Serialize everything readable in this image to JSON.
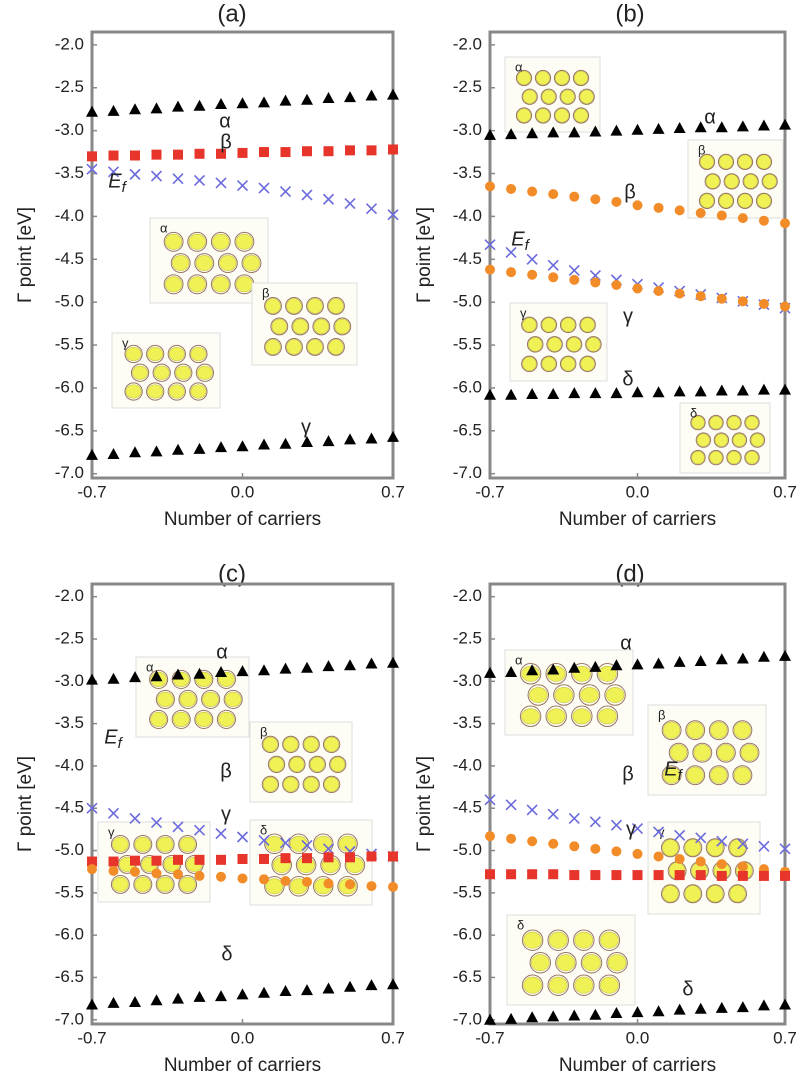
{
  "chart_data": [
    {
      "type": "scatter",
      "title": "(a)",
      "xlabel": "Number of carriers",
      "ylabel": "Γ point [eV]",
      "x": [
        -0.7,
        -0.6,
        -0.5,
        -0.4,
        -0.3,
        -0.2,
        -0.1,
        0,
        0.1,
        0.2,
        0.3,
        0.4,
        0.5,
        0.6,
        0.7
      ],
      "xlim": [
        -0.7,
        0.7
      ],
      "ylim": [
        -7.05,
        -1.85
      ],
      "xticks": [
        -0.7,
        {
          "value": 0,
          "label": "0.0"
        },
        0.7
      ],
      "yticks": [
        {
          "value": -2,
          "label": "-2.0"
        },
        -2.5,
        {
          "value": -3,
          "label": "-3.0"
        },
        -3.5,
        {
          "value": -4,
          "label": "-4.0"
        },
        -4.5,
        {
          "value": -5,
          "label": "-5.0"
        },
        -5.5,
        {
          "value": -6,
          "label": "-6.0"
        },
        -6.5,
        {
          "value": -7,
          "label": "-7.0"
        }
      ],
      "series": [
        {
          "name": "α",
          "color": "#000000",
          "marker": "triangle",
          "values": [
            -2.78,
            -2.77,
            -2.75,
            -2.74,
            -2.72,
            -2.71,
            -2.69,
            -2.68,
            -2.67,
            -2.65,
            -2.64,
            -2.62,
            -2.61,
            -2.59,
            -2.58
          ]
        },
        {
          "name": "β",
          "color": "#e8352b",
          "marker": "square",
          "values": [
            -3.3,
            -3.29,
            -3.29,
            -3.28,
            -3.28,
            -3.27,
            -3.27,
            -3.26,
            -3.25,
            -3.25,
            -3.24,
            -3.24,
            -3.23,
            -3.23,
            -3.22
          ]
        },
        {
          "name": "Ef",
          "color": "#6b6bdc",
          "marker": "cross",
          "values": [
            -3.45,
            -3.48,
            -3.51,
            -3.53,
            -3.56,
            -3.58,
            -3.61,
            -3.64,
            -3.67,
            -3.71,
            -3.75,
            -3.8,
            -3.85,
            -3.91,
            -3.98
          ]
        },
        {
          "name": "γ",
          "color": "#000000",
          "marker": "triangle",
          "values": [
            -6.78,
            -6.77,
            -6.75,
            -6.74,
            -6.72,
            -6.71,
            -6.69,
            -6.68,
            -6.66,
            -6.65,
            -6.63,
            -6.62,
            -6.6,
            -6.59,
            -6.57
          ]
        }
      ],
      "insets": [
        "α",
        "β",
        "γ"
      ]
    },
    {
      "type": "scatter",
      "title": "(b)",
      "xlabel": "Number of carriers",
      "ylabel": "Γ point [eV]",
      "x": [
        -0.7,
        -0.6,
        -0.5,
        -0.4,
        -0.3,
        -0.2,
        -0.1,
        0,
        0.1,
        0.2,
        0.3,
        0.4,
        0.5,
        0.6,
        0.7
      ],
      "xlim": [
        -0.7,
        0.7
      ],
      "ylim": [
        -7.05,
        -1.85
      ],
      "xticks": [
        -0.7,
        {
          "value": 0,
          "label": "0.0"
        },
        0.7
      ],
      "yticks": [
        {
          "value": -2,
          "label": "-2.0"
        },
        -2.5,
        {
          "value": -3,
          "label": "-3.0"
        },
        -3.5,
        {
          "value": -4,
          "label": "-4.0"
        },
        -4.5,
        {
          "value": -5,
          "label": "-5.0"
        },
        -5.5,
        {
          "value": -6,
          "label": "-6.0"
        },
        -6.5,
        {
          "value": -7,
          "label": "-7.0"
        }
      ],
      "series": [
        {
          "name": "α",
          "color": "#000000",
          "marker": "triangle",
          "values": [
            -3.05,
            -3.04,
            -3.03,
            -3.02,
            -3.02,
            -3.01,
            -3.0,
            -2.99,
            -2.98,
            -2.97,
            -2.96,
            -2.96,
            -2.95,
            -2.94,
            -2.93
          ]
        },
        {
          "name": "β",
          "color": "#f28c28",
          "marker": "circle",
          "values": [
            -3.65,
            -3.68,
            -3.71,
            -3.74,
            -3.77,
            -3.8,
            -3.83,
            -3.87,
            -3.9,
            -3.93,
            -3.96,
            -3.99,
            -4.02,
            -4.05,
            -4.08
          ]
        },
        {
          "name": "Ef",
          "color": "#6b6bdc",
          "marker": "cross",
          "values": [
            -4.33,
            -4.42,
            -4.5,
            -4.57,
            -4.63,
            -4.69,
            -4.74,
            -4.79,
            -4.83,
            -4.87,
            -4.91,
            -4.95,
            -4.99,
            -5.03,
            -5.07
          ]
        },
        {
          "name": "γ",
          "color": "#f28c28",
          "marker": "circle",
          "values": [
            -4.62,
            -4.65,
            -4.68,
            -4.71,
            -4.74,
            -4.77,
            -4.8,
            -4.84,
            -4.87,
            -4.9,
            -4.93,
            -4.96,
            -4.99,
            -5.02,
            -5.05
          ]
        },
        {
          "name": "δ",
          "color": "#000000",
          "marker": "triangle",
          "values": [
            -6.08,
            -6.08,
            -6.07,
            -6.07,
            -6.06,
            -6.06,
            -6.06,
            -6.05,
            -6.05,
            -6.04,
            -6.04,
            -6.03,
            -6.03,
            -6.02,
            -6.02
          ]
        }
      ],
      "insets": [
        "α",
        "β",
        "γ",
        "δ"
      ]
    },
    {
      "type": "scatter",
      "title": "(c)",
      "xlabel": "Number of carriers",
      "ylabel": "Γ point [eV]",
      "x": [
        -0.7,
        -0.6,
        -0.5,
        -0.4,
        -0.3,
        -0.2,
        -0.1,
        0,
        0.1,
        0.2,
        0.3,
        0.4,
        0.5,
        0.6,
        0.7
      ],
      "xlim": [
        -0.7,
        0.7
      ],
      "ylim": [
        -7.05,
        -1.85
      ],
      "xticks": [
        -0.7,
        {
          "value": 0,
          "label": "0.0"
        },
        0.7
      ],
      "yticks": [
        {
          "value": -2,
          "label": "-2.0"
        },
        -2.5,
        {
          "value": -3,
          "label": "-3.0"
        },
        -3.5,
        {
          "value": -4,
          "label": "-4.0"
        },
        -4.5,
        {
          "value": -5,
          "label": "-5.0"
        },
        -5.5,
        {
          "value": -6,
          "label": "-6.0"
        },
        -6.5,
        {
          "value": -7,
          "label": "-7.0"
        }
      ],
      "series": [
        {
          "name": "α",
          "color": "#000000",
          "marker": "triangle",
          "values": [
            -2.98,
            -2.97,
            -2.95,
            -2.94,
            -2.92,
            -2.91,
            -2.89,
            -2.88,
            -2.87,
            -2.85,
            -2.84,
            -2.82,
            -2.81,
            -2.79,
            -2.78
          ]
        },
        {
          "name": "Ef",
          "color": "#6b6bdc",
          "marker": "cross",
          "values": [
            -4.5,
            -4.56,
            -4.62,
            -4.67,
            -4.72,
            -4.76,
            -4.8,
            -4.84,
            -4.88,
            -4.91,
            -4.94,
            -4.98,
            -5.01,
            -5.04,
            -5.07
          ]
        },
        {
          "name": "β",
          "color": "#e8352b",
          "marker": "square",
          "values": [
            -5.13,
            -5.13,
            -5.12,
            -5.12,
            -5.11,
            -5.11,
            -5.11,
            -5.1,
            -5.1,
            -5.09,
            -5.09,
            -5.08,
            -5.08,
            -5.07,
            -5.07
          ]
        },
        {
          "name": "γ",
          "color": "#f28c28",
          "marker": "circle",
          "values": [
            -5.22,
            -5.24,
            -5.25,
            -5.27,
            -5.28,
            -5.3,
            -5.31,
            -5.33,
            -5.34,
            -5.36,
            -5.37,
            -5.39,
            -5.4,
            -5.42,
            -5.43
          ]
        },
        {
          "name": "δ",
          "color": "#000000",
          "marker": "triangle",
          "values": [
            -6.82,
            -6.8,
            -6.79,
            -6.77,
            -6.75,
            -6.73,
            -6.72,
            -6.7,
            -6.68,
            -6.66,
            -6.65,
            -6.63,
            -6.61,
            -6.59,
            -6.58
          ]
        }
      ],
      "insets": [
        "α",
        "β",
        "γ",
        "δ"
      ]
    },
    {
      "type": "scatter",
      "title": "(d)",
      "xlabel": "Number of carriers",
      "ylabel": "Γ point [eV]",
      "x": [
        -0.7,
        -0.6,
        -0.5,
        -0.4,
        -0.3,
        -0.2,
        -0.1,
        0,
        0.1,
        0.2,
        0.3,
        0.4,
        0.5,
        0.6,
        0.7
      ],
      "xlim": [
        -0.7,
        0.7
      ],
      "ylim": [
        -7.05,
        -1.85
      ],
      "xticks": [
        -0.7,
        {
          "value": 0,
          "label": "0.0"
        },
        0.7
      ],
      "yticks": [
        {
          "value": -2,
          "label": "-2.0"
        },
        -2.5,
        {
          "value": -3,
          "label": "-3.0"
        },
        -3.5,
        {
          "value": -4,
          "label": "-4.0"
        },
        -4.5,
        {
          "value": -5,
          "label": "-5.0"
        },
        -5.5,
        {
          "value": -6,
          "label": "-6.0"
        },
        -6.5,
        {
          "value": -7,
          "label": "-7.0"
        }
      ],
      "series": [
        {
          "name": "α",
          "color": "#000000",
          "marker": "triangle",
          "values": [
            -2.9,
            -2.89,
            -2.87,
            -2.86,
            -2.84,
            -2.83,
            -2.81,
            -2.8,
            -2.79,
            -2.77,
            -2.76,
            -2.74,
            -2.73,
            -2.71,
            -2.7
          ]
        },
        {
          "name": "Ef",
          "color": "#6b6bdc",
          "marker": "cross",
          "values": [
            -4.4,
            -4.46,
            -4.52,
            -4.57,
            -4.62,
            -4.66,
            -4.7,
            -4.74,
            -4.78,
            -4.82,
            -4.85,
            -4.89,
            -4.92,
            -4.95,
            -4.98
          ]
        },
        {
          "name": "β",
          "color": "#f28c28",
          "marker": "circle",
          "values": [
            -4.83,
            -4.86,
            -4.89,
            -4.92,
            -4.95,
            -4.98,
            -5.01,
            -5.04,
            -5.07,
            -5.1,
            -5.13,
            -5.16,
            -5.19,
            -5.22,
            -5.25
          ]
        },
        {
          "name": "γ",
          "color": "#e8352b",
          "marker": "square",
          "values": [
            -5.28,
            -5.28,
            -5.28,
            -5.28,
            -5.29,
            -5.29,
            -5.29,
            -5.29,
            -5.29,
            -5.29,
            -5.29,
            -5.3,
            -5.3,
            -5.3,
            -5.3
          ]
        },
        {
          "name": "δ",
          "color": "#000000",
          "marker": "triangle",
          "values": [
            -7.0,
            -6.99,
            -6.97,
            -6.96,
            -6.95,
            -6.94,
            -6.92,
            -6.91,
            -6.9,
            -6.88,
            -6.87,
            -6.86,
            -6.85,
            -6.83,
            -6.82
          ]
        }
      ],
      "insets": [
        "α",
        "β",
        "γ",
        "δ"
      ]
    }
  ]
}
